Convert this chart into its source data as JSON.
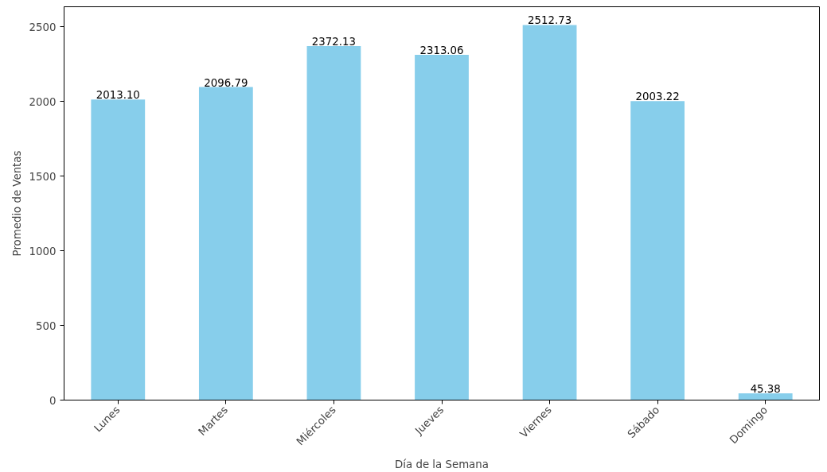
{
  "chart_data": {
    "type": "bar",
    "xlabel": "Día de la Semana",
    "ylabel": "Promedio de Ventas",
    "categories": [
      "Lunes",
      "Martes",
      "Miércoles",
      "Jueves",
      "Viernes",
      "Sábado",
      "Domingo"
    ],
    "values": [
      2013.1,
      2096.79,
      2372.13,
      2313.06,
      2512.73,
      2003.22,
      45.38
    ],
    "value_labels": [
      "2013.10",
      "2096.79",
      "2372.13",
      "2313.06",
      "2512.73",
      "2003.22",
      "45.38"
    ],
    "color": "#87ceeb",
    "ylim": [
      0,
      2635
    ],
    "yticks": [
      0,
      500,
      1000,
      1500,
      2000,
      2500
    ],
    "grid": false
  }
}
